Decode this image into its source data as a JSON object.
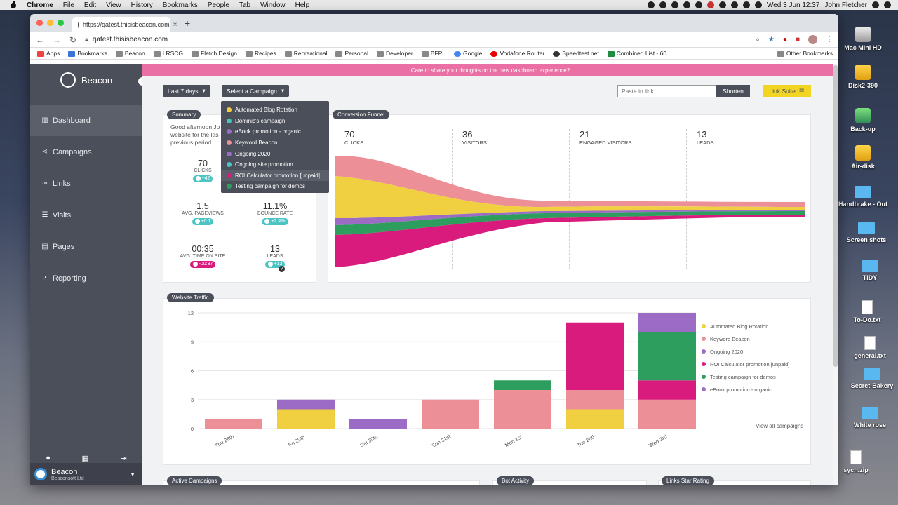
{
  "menubar": {
    "app": "Chrome",
    "items": [
      "File",
      "Edit",
      "View",
      "History",
      "Bookmarks",
      "People",
      "Tab",
      "Window",
      "Help"
    ],
    "clock": "Wed 3 Jun  12:37",
    "user": "John Fletcher"
  },
  "desktop": [
    {
      "label": "Mac Mini HD",
      "icon": "drive-icon"
    },
    {
      "label": "Disk2-390",
      "icon": "drive-icon"
    },
    {
      "label": "Back-up",
      "icon": "time-machine-icon"
    },
    {
      "label": "Air-disk",
      "icon": "drive-icon"
    },
    {
      "label": "Handbrake - Out",
      "icon": "folder-icon"
    },
    {
      "label": "Screen shots",
      "icon": "folder-icon"
    },
    {
      "label": "TIDY",
      "icon": "folder-icon"
    },
    {
      "label": "To-Do.txt",
      "icon": "text-file-icon"
    },
    {
      "label": "general.txt",
      "icon": "text-file-icon"
    },
    {
      "label": "Secret-Bakery",
      "icon": "folder-icon"
    },
    {
      "label": "White rose",
      "icon": "folder-icon"
    },
    {
      "label": "sych.zip",
      "icon": "zip-icon"
    }
  ],
  "browser": {
    "tab_title": "https://qatest.thisisbeacon.com",
    "url": "qatest.thisisbeacon.com",
    "bookmarks": [
      "Apps",
      "Bookmarks",
      "Beacon",
      "LRSCG",
      "Fletch Design",
      "Recipes",
      "Recreational",
      "Personal",
      "Developer",
      "BFPL",
      "Google",
      "Vodafone Router",
      "Speedtest.net",
      "Combined List - 60..."
    ],
    "other_bookmarks": "Other Bookmarks"
  },
  "sidebar": {
    "brand": "Beacon",
    "items": [
      {
        "label": "Dashboard",
        "icon": "chart-icon",
        "active": true
      },
      {
        "label": "Campaigns",
        "icon": "share-icon"
      },
      {
        "label": "Links",
        "icon": "link-icon"
      },
      {
        "label": "Visits",
        "icon": "list-icon"
      },
      {
        "label": "Pages",
        "icon": "page-icon"
      },
      {
        "label": "Reporting",
        "icon": "pie-icon"
      }
    ],
    "account_name": "Beacon",
    "account_org": "Beaconsoft Ltd"
  },
  "banner": "Care to share your thoughts on the new dashboard experience?",
  "toolbar": {
    "range": "Last 7 days",
    "campaign_select": "Select a Campaign",
    "paste_placeholder": "Paste in link",
    "shorten": "Shorten",
    "link_suite": "Link Suite"
  },
  "campaign_menu": [
    {
      "label": "Automated Blog Rotation",
      "color": "#f0d040"
    },
    {
      "label": "Dominic's campaign",
      "color": "#4cc4c4"
    },
    {
      "label": "eBook promotion - organic",
      "color": "#9b6bc6"
    },
    {
      "label": "Keyword Beacon",
      "color": "#ec8f96"
    },
    {
      "label": "Ongoing 2020",
      "color": "#9b6bc6"
    },
    {
      "label": "Ongoing site promotion",
      "color": "#4cc4c4"
    },
    {
      "label": "ROI Calculator promotion [unpaid]",
      "color": "#d81b7c"
    },
    {
      "label": "Testing campaign for demos",
      "color": "#2e9e5e"
    }
  ],
  "summary": {
    "title": "Summary",
    "intro": "Good afternoon Jo website for the las previous period.",
    "stats": [
      {
        "value": "70",
        "label": "Clicks",
        "delta": "+42",
        "neg": false
      },
      {
        "value": "1.5",
        "label": "Avg. Pageviews",
        "delta": "+0.1",
        "neg": false
      },
      {
        "value": "11.1%",
        "label": "Bounce Rate",
        "delta": "+2.4%",
        "neg": false
      },
      {
        "value": "00:35",
        "label": "Avg. Time on Site",
        "delta": "-00:37",
        "neg": true
      },
      {
        "value": "13",
        "label": "Leads",
        "delta": "+13",
        "neg": false
      }
    ],
    "help": "?"
  },
  "funnel": {
    "title": "Conversion Funnel",
    "stages": [
      {
        "value": "70",
        "label": "Clicks"
      },
      {
        "value": "36",
        "label": "Visitors"
      },
      {
        "value": "21",
        "label": "Engaged Visitors"
      },
      {
        "value": "13",
        "label": "Leads"
      }
    ],
    "colors": [
      "#ec8f96",
      "#f0d040",
      "#9b6bc6",
      "#2e9e5e",
      "#d81b7c"
    ]
  },
  "traffic": {
    "title": "Website Traffic",
    "view_all": "View all campaigns"
  },
  "chart_data": {
    "type": "bar",
    "stacked": true,
    "categories": [
      "Thu 28th",
      "Fri 29th",
      "Sat 30th",
      "Sun 31st",
      "Mon 1st",
      "Tue 2nd",
      "Wed 3rd"
    ],
    "ylim": [
      0,
      12
    ],
    "yticks": [
      0,
      3,
      6,
      9,
      12
    ],
    "grid": true,
    "legend": "right",
    "series": [
      {
        "name": "Automated Blog Rotation",
        "color": "#f0d040",
        "values": [
          0,
          2,
          0,
          0,
          0,
          2,
          0
        ]
      },
      {
        "name": "Keyword Beacon",
        "color": "#ec8f96",
        "values": [
          1,
          0,
          0,
          3,
          4,
          2,
          3
        ]
      },
      {
        "name": "Ongoing 2020",
        "color": "#9b6bc6",
        "values": [
          0,
          0,
          0,
          0,
          0,
          0,
          0
        ]
      },
      {
        "name": "ROI Calculator promotion [unpaid]",
        "color": "#d81b7c",
        "values": [
          0,
          0,
          0,
          0,
          0,
          7,
          2
        ]
      },
      {
        "name": "Testing campaign for demos",
        "color": "#2e9e5e",
        "values": [
          0,
          0,
          0,
          0,
          1,
          0,
          5
        ]
      },
      {
        "name": "eBook promotion - organic",
        "color": "#9b6bc6",
        "values": [
          0,
          1,
          1,
          0,
          0,
          0,
          2
        ]
      }
    ]
  },
  "bottom_cards": [
    "Active Campaigns",
    "Bot Activity",
    "Links Star Rating"
  ]
}
